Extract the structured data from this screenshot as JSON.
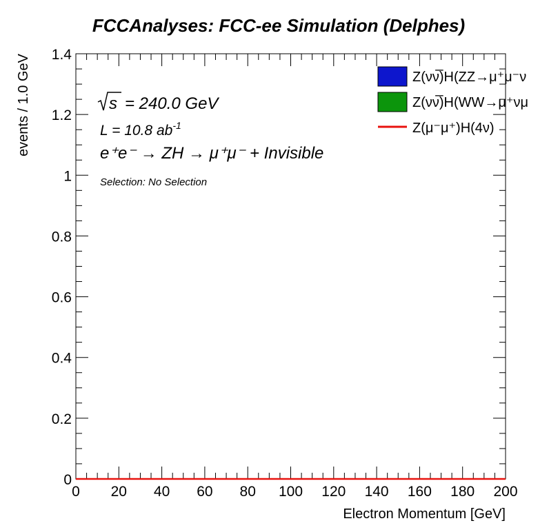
{
  "chart_data": {
    "type": "bar",
    "title": "FCCAnalyses: FCC-ee Simulation (Delphes)",
    "xlabel": "Electron Momentum [GeV]",
    "ylabel": "events / 1.0 GeV",
    "xlim": [
      0,
      200
    ],
    "ylim": [
      0,
      1.4
    ],
    "bin_width": 1.0,
    "grid": false,
    "legend_position": "top-right",
    "x_ticks": [
      "0",
      "20",
      "40",
      "60",
      "80",
      "100",
      "120",
      "140",
      "160",
      "180",
      "200"
    ],
    "y_ticks": [
      "0",
      "0.2",
      "0.4",
      "0.6",
      "0.8",
      "1",
      "1.2",
      "1.4"
    ],
    "series": [
      {
        "name": "Z(νν̅)H(ZZ→μ⁺μ⁻ν",
        "style": "stacked-fill",
        "color": "#0d16cd",
        "values": [
          0
        ]
      },
      {
        "name": "Z(νν̅)H(WW→μ⁺νμ",
        "style": "stacked-fill",
        "color": "#0c950c",
        "values": [
          0
        ]
      },
      {
        "name": "Z(μ⁻μ⁺)H(4ν)",
        "style": "line",
        "color": "#e8120e",
        "values": [
          0
        ]
      }
    ],
    "annotations": {
      "energy": "= 240.0 GeV",
      "energy_sqrt": "√s",
      "luminosity": "L = 10.8 ab",
      "luminosity_exp": "-1",
      "process": "e⁺e⁻ → ZH → μ⁺μ⁻ + Invisible",
      "selection": "Selection: No Selection"
    }
  }
}
